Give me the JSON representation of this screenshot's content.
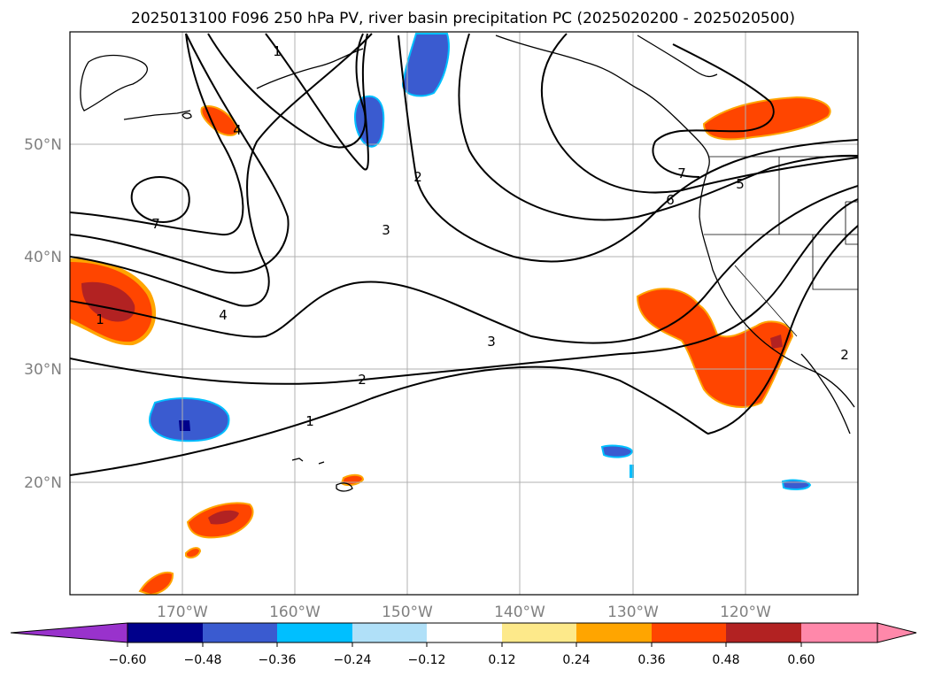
{
  "title": "2025013100 F096 250 hPa PV, river basin precipitation PC (2025020200 - 2025020500)",
  "lat_labels": [
    "50°N",
    "40°N",
    "30°N",
    "20°N"
  ],
  "lon_labels": [
    "170°W",
    "160°W",
    "150°W",
    "140°W",
    "130°W",
    "120°W"
  ],
  "contour_labels": [
    "7",
    "1",
    "4",
    "4",
    "3",
    "2",
    "1",
    "2",
    "3",
    "7",
    "6",
    "5",
    "1",
    "2"
  ],
  "colorbar": {
    "tick_labels": [
      "−0.60",
      "−0.48",
      "−0.36",
      "−0.24",
      "−0.12",
      "0.12",
      "0.24",
      "0.36",
      "0.48",
      "0.60"
    ],
    "colors": [
      "#9932cc",
      "#00008b",
      "#3a5bd0",
      "#00bfff",
      "#b0e0f8",
      "#ffffff",
      "#fde98a",
      "#ffa500",
      "#ff4500",
      "#b22222",
      "#ff88aa",
      "#ff88aa"
    ]
  }
}
